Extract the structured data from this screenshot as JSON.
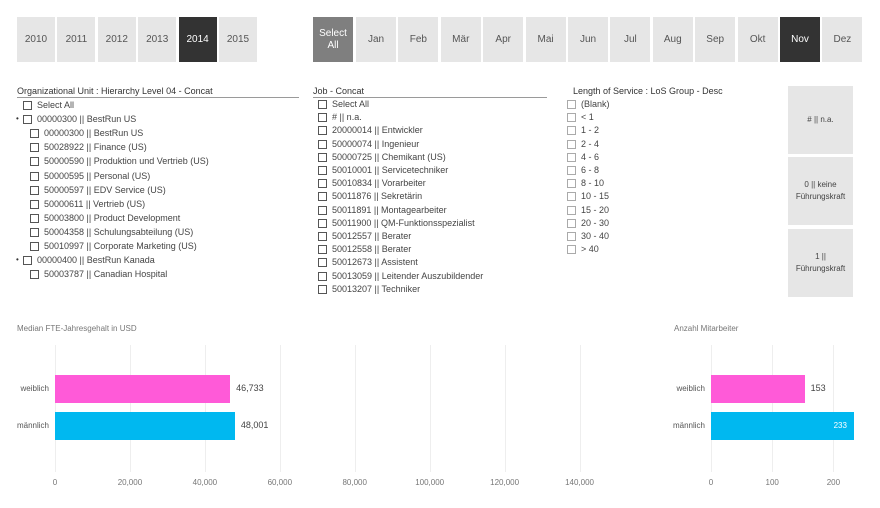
{
  "years": {
    "items": [
      {
        "label": "2010",
        "selected": false
      },
      {
        "label": "2011",
        "selected": false
      },
      {
        "label": "2012",
        "selected": false
      },
      {
        "label": "2013",
        "selected": false
      },
      {
        "label": "2014",
        "selected": true
      },
      {
        "label": "2015",
        "selected": false
      }
    ]
  },
  "months": {
    "select_all": "Select All",
    "items": [
      {
        "label": "Jan",
        "selected": false
      },
      {
        "label": "Feb",
        "selected": false
      },
      {
        "label": "Mär",
        "selected": false
      },
      {
        "label": "Apr",
        "selected": false
      },
      {
        "label": "Mai",
        "selected": false
      },
      {
        "label": "Jun",
        "selected": false
      },
      {
        "label": "Jul",
        "selected": false
      },
      {
        "label": "Aug",
        "selected": false
      },
      {
        "label": "Sep",
        "selected": false
      },
      {
        "label": "Okt",
        "selected": false
      },
      {
        "label": "Nov",
        "selected": true
      },
      {
        "label": "Dez",
        "selected": false
      }
    ]
  },
  "org_slicer": {
    "title": "Organizational Unit : Hierarchy Level 04 - Concat",
    "items": [
      {
        "label": "Select All",
        "level": 0,
        "expanded": false
      },
      {
        "label": "00000300 || BestRun US",
        "level": 0,
        "expanded": true
      },
      {
        "label": "00000300 || BestRun US",
        "level": 1,
        "expanded": false
      },
      {
        "label": "50028922 || Finance (US)",
        "level": 1,
        "expanded": false
      },
      {
        "label": "50000590 || Produktion und Vertrieb (US)",
        "level": 1,
        "expanded": false
      },
      {
        "label": "50000595 || Personal (US)",
        "level": 1,
        "expanded": false
      },
      {
        "label": "50000597 || EDV Service (US)",
        "level": 1,
        "expanded": false
      },
      {
        "label": "50000611 || Vertrieb (US)",
        "level": 1,
        "expanded": false
      },
      {
        "label": "50003800 || Product Development",
        "level": 1,
        "expanded": false
      },
      {
        "label": "50004358 || Schulungsabteilung (US)",
        "level": 1,
        "expanded": false
      },
      {
        "label": "50010997 || Corporate Marketing (US)",
        "level": 1,
        "expanded": false
      },
      {
        "label": "00000400 || BestRun Kanada",
        "level": 0,
        "expanded": true
      },
      {
        "label": "50003787 || Canadian Hospital",
        "level": 1,
        "expanded": false
      }
    ]
  },
  "job_slicer": {
    "title": "Job - Concat",
    "items": [
      "Select All",
      "# || n.a.",
      "20000014 || Entwickler",
      "50000074 || Ingenieur",
      "50000725 || Chemikant (US)",
      "50010001 || Servicetechniker",
      "50010834 || Vorarbeiter",
      "50011876 || Sekretärin",
      "50011891 || Montagearbeiter",
      "50011900 || QM-Funktionsspezialist",
      "50012557 || Berater",
      "50012558 || Berater",
      "50012673 || Assistent",
      "50013059 || Leitender Auszubildender",
      "50013207 || Techniker"
    ]
  },
  "los_slicer": {
    "title": "Length of Service : LoS Group - Desc",
    "items": [
      "(Blank)",
      "< 1",
      "1 - 2",
      "2 - 4",
      "4 - 6",
      "6 - 8",
      "8 - 10",
      "10 - 15",
      "15 - 20",
      "20 - 30",
      "30 - 40",
      "> 40"
    ]
  },
  "leader_buttons": [
    {
      "label": "# || n.a."
    },
    {
      "label": "0 || keine Führungskraft"
    },
    {
      "label": "1 || Führungskraft"
    }
  ],
  "colors": {
    "female": "#ff5ad8",
    "male": "#00b8f0",
    "selected_tile": "#333333",
    "tile": "#e6e6e6"
  },
  "chart_data": [
    {
      "type": "bar",
      "orientation": "horizontal",
      "title": "Median FTE-Jahresgehalt in USD",
      "categories": [
        "weiblich",
        "männlich"
      ],
      "values": [
        46733,
        48001
      ],
      "value_labels": [
        "46,733",
        "48,001"
      ],
      "xlim": [
        0,
        150000
      ],
      "ticks": [
        0,
        20000,
        40000,
        60000,
        80000,
        100000,
        120000,
        140000
      ],
      "tick_labels": [
        "0",
        "20,000",
        "40,000",
        "60,000",
        "80,000",
        "100,000",
        "120,000",
        "140,000"
      ],
      "grid": true,
      "bar_colors": [
        "#ff5ad8",
        "#00b8f0"
      ]
    },
    {
      "type": "bar",
      "orientation": "horizontal",
      "title": "Anzahl Mitarbeiter",
      "categories": [
        "weiblich",
        "männlich"
      ],
      "values": [
        153,
        233
      ],
      "value_labels": [
        "153",
        "233"
      ],
      "xlim": [
        0,
        250
      ],
      "ticks": [
        0,
        100,
        200
      ],
      "tick_labels": [
        "0",
        "100",
        "200"
      ],
      "grid": true,
      "bar_colors": [
        "#ff5ad8",
        "#00b8f0"
      ]
    }
  ]
}
